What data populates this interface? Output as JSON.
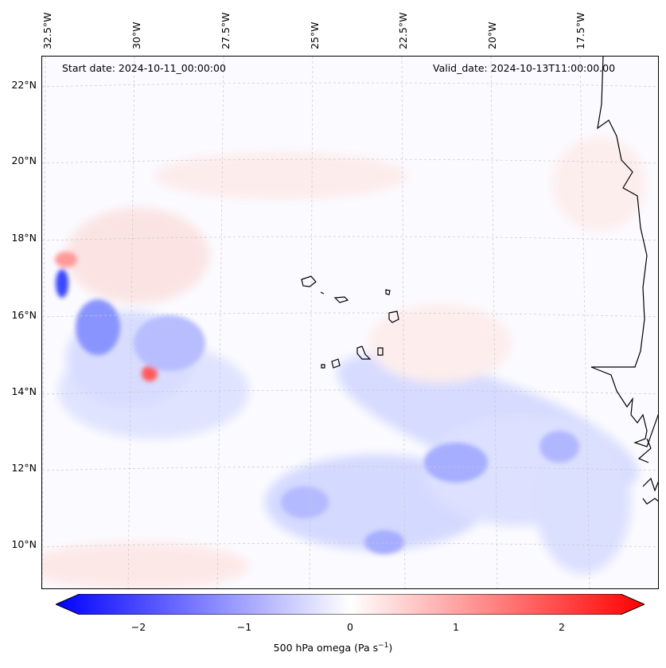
{
  "map": {
    "start_date": "Start date: 2024-10-11_00:00:00",
    "valid_date": "Valid_date: 2024-10-13T11:00:00.00",
    "lon_labels": [
      "32.5°W",
      "30°W",
      "27.5°W",
      "25°W",
      "22.5°W",
      "20°W",
      "17.5°W"
    ],
    "lat_labels": [
      "22°N",
      "20°N",
      "18°N",
      "16°N",
      "14°N",
      "12°N",
      "10°N"
    ],
    "variable": "500 hPa omega",
    "units": "Pa s",
    "units_exponent": "−1",
    "colorbar_ticks": [
      "−2",
      "−1",
      "0",
      "1",
      "2"
    ],
    "colorbar_range": [
      -2.6,
      2.6
    ],
    "colors": {
      "negative": "#0000ff",
      "neutral": "#ffffff",
      "positive": "#ff0000",
      "coast": "#000000"
    }
  }
}
